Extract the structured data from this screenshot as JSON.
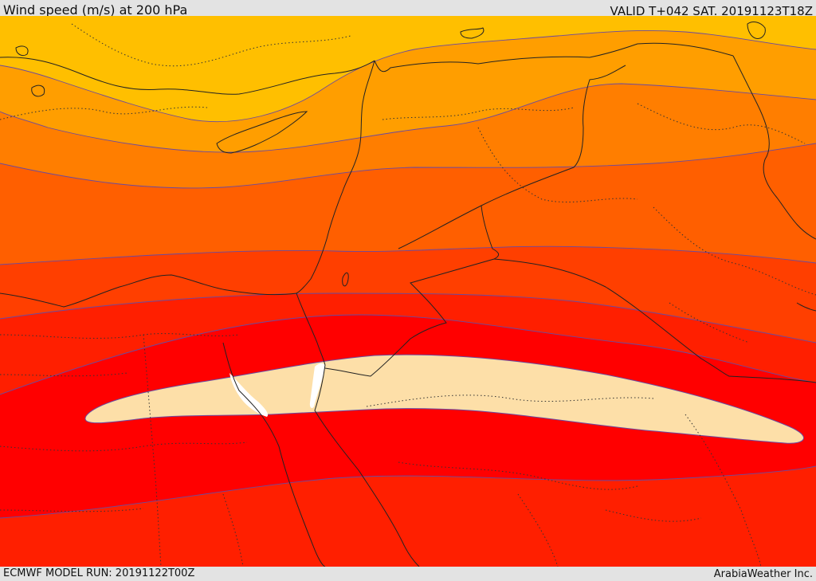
{
  "header": {
    "title": "Wind speed (m/s) at 200 hPa",
    "valid": "VALID T+042 SAT. 20191123T18Z"
  },
  "footer": {
    "model_run": "ECMWF MODEL RUN: 20191122T00Z",
    "credit": "ArabiaWeather Inc."
  },
  "colors": {
    "band_lightest": "#ffbf00",
    "band_2": "#ff9e00",
    "band_3": "#ff7e00",
    "band_4": "#ff5f00",
    "band_5": "#ff3f00",
    "band_6": "#ff1f00",
    "band_max_red": "#ff0000",
    "jet_core": "#fddfa8",
    "no_data": "#ffffff",
    "contour": "#6a4aa0"
  }
}
